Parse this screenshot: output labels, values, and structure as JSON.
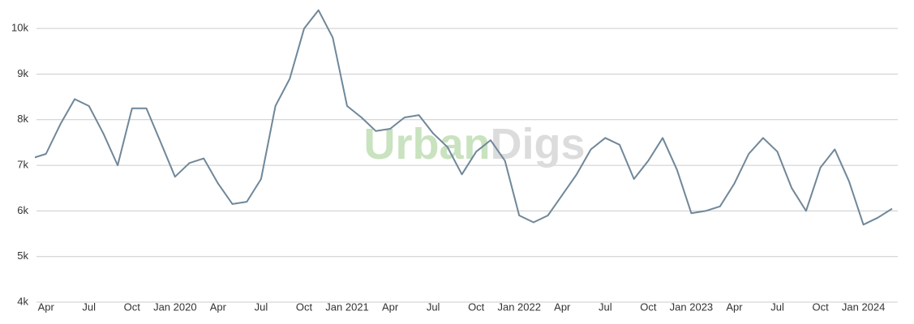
{
  "chart_data": {
    "type": "line",
    "watermark": [
      "Urban",
      "Digs"
    ],
    "x": [
      "2019-03",
      "2019-04",
      "2019-05",
      "2019-06",
      "2019-07",
      "2019-08",
      "2019-09",
      "2019-10",
      "2019-11",
      "2019-12",
      "2020-01",
      "2020-02",
      "2020-03",
      "2020-04",
      "2020-05",
      "2020-06",
      "2020-07",
      "2020-08",
      "2020-09",
      "2020-10",
      "2020-11",
      "2020-12",
      "2021-01",
      "2021-02",
      "2021-03",
      "2021-04",
      "2021-05",
      "2021-06",
      "2021-07",
      "2021-08",
      "2021-09",
      "2021-10",
      "2021-11",
      "2021-12",
      "2022-01",
      "2022-02",
      "2022-03",
      "2022-04",
      "2022-05",
      "2022-06",
      "2022-07",
      "2022-08",
      "2022-09",
      "2022-10",
      "2022-11",
      "2022-12",
      "2023-01",
      "2023-02",
      "2023-03",
      "2023-04",
      "2023-05",
      "2023-06",
      "2023-07",
      "2023-08",
      "2023-09",
      "2023-10",
      "2023-11",
      "2023-12",
      "2024-01",
      "2024-02",
      "2024-03"
    ],
    "series": [
      {
        "color": "#6f8799",
        "values": [
          7150,
          7250,
          7900,
          8450,
          8300,
          7700,
          7000,
          8250,
          8250,
          7500,
          6750,
          7050,
          7150,
          6600,
          6150,
          6200,
          6700,
          8300,
          8900,
          10000,
          10400,
          9800,
          8300,
          8050,
          7750,
          7800,
          8050,
          8100,
          7700,
          7400,
          6800,
          7300,
          7550,
          7100,
          5900,
          5750,
          5900,
          6350,
          6800,
          7350,
          7600,
          7450,
          6700,
          7100,
          7600,
          6900,
          5950,
          6000,
          6100,
          6600,
          7250,
          7600,
          7300,
          6500,
          6000,
          6950,
          7350,
          6650,
          5700,
          5850,
          6050
        ]
      }
    ],
    "xlim": [
      "2019-03",
      "2024-03"
    ],
    "xticks": [
      {
        "value": "2019-04",
        "label": "Apr"
      },
      {
        "value": "2019-07",
        "label": "Jul"
      },
      {
        "value": "2019-10",
        "label": "Oct"
      },
      {
        "value": "2020-01",
        "label": "Jan 2020"
      },
      {
        "value": "2020-04",
        "label": "Apr"
      },
      {
        "value": "2020-07",
        "label": "Jul"
      },
      {
        "value": "2020-10",
        "label": "Oct"
      },
      {
        "value": "2021-01",
        "label": "Jan 2021"
      },
      {
        "value": "2021-04",
        "label": "Apr"
      },
      {
        "value": "2021-07",
        "label": "Jul"
      },
      {
        "value": "2021-10",
        "label": "Oct"
      },
      {
        "value": "2022-01",
        "label": "Jan 2022"
      },
      {
        "value": "2022-04",
        "label": "Apr"
      },
      {
        "value": "2022-07",
        "label": "Jul"
      },
      {
        "value": "2022-10",
        "label": "Oct"
      },
      {
        "value": "2023-01",
        "label": "Jan 2023"
      },
      {
        "value": "2023-04",
        "label": "Apr"
      },
      {
        "value": "2023-07",
        "label": "Jul"
      },
      {
        "value": "2023-10",
        "label": "Oct"
      },
      {
        "value": "2024-01",
        "label": "Jan 2024"
      }
    ],
    "ylim": [
      4000,
      10500
    ],
    "yticks": [
      {
        "value": 4000,
        "label": "4k"
      },
      {
        "value": 5000,
        "label": "5k"
      },
      {
        "value": 6000,
        "label": "6k"
      },
      {
        "value": 7000,
        "label": "7k"
      },
      {
        "value": 8000,
        "label": "8k"
      },
      {
        "value": 9000,
        "label": "9k"
      },
      {
        "value": 10000,
        "label": "10k"
      }
    ],
    "grid": true
  }
}
